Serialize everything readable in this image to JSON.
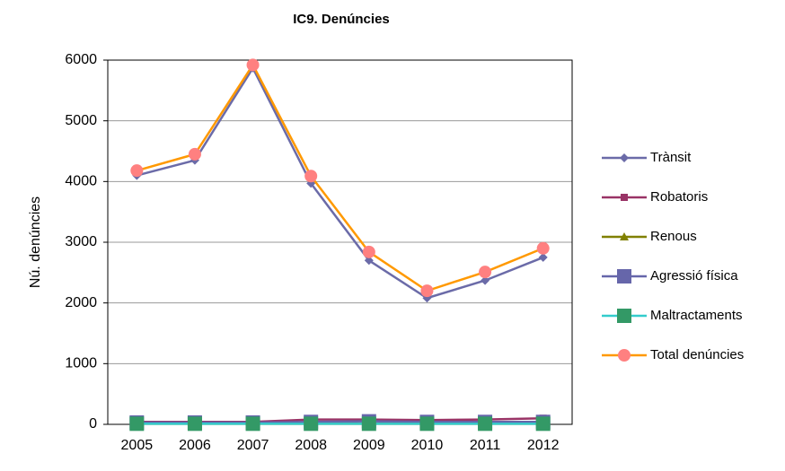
{
  "chart_data": {
    "type": "line",
    "title": "IC9. Denúncies",
    "y_label": "Nú. denúncies",
    "categories": [
      "2005",
      "2006",
      "2007",
      "2008",
      "2009",
      "2010",
      "2011",
      "2012"
    ],
    "series": [
      {
        "name": "Trànsit",
        "color": "#6b6ba8",
        "marker": "diamond",
        "marker_color": "#6b6ba8",
        "values": [
          4100,
          4350,
          5870,
          3970,
          2700,
          2080,
          2370,
          2750
        ]
      },
      {
        "name": "Robatoris",
        "color": "#993366",
        "marker": "square",
        "marker_color": "#993366",
        "values": [
          40,
          40,
          40,
          80,
          80,
          70,
          80,
          100
        ]
      },
      {
        "name": "Renous",
        "color": "#808000",
        "marker": "triangle",
        "marker_color": "#808000",
        "values": [
          10,
          10,
          10,
          10,
          10,
          10,
          10,
          10
        ]
      },
      {
        "name": "Agressió física",
        "color": "#6666aa",
        "marker": "bigsquare",
        "marker_color": "#6666aa",
        "values": [
          30,
          30,
          30,
          40,
          50,
          40,
          40,
          40
        ]
      },
      {
        "name": "Maltractaments",
        "color": "#33cccc",
        "marker": "bigsquare",
        "marker_color": "#339966",
        "values": [
          10,
          10,
          10,
          10,
          10,
          10,
          10,
          10
        ]
      },
      {
        "name": "Total denúncies",
        "color": "#ff9900",
        "marker": "circle",
        "marker_color": "#ff8080",
        "values": [
          4180,
          4450,
          5920,
          4090,
          2840,
          2200,
          2510,
          2900
        ]
      }
    ],
    "ylim": [
      0,
      6000
    ],
    "yticks": [
      0,
      1000,
      2000,
      3000,
      4000,
      5000,
      6000
    ],
    "grid": true,
    "legend": "right"
  }
}
